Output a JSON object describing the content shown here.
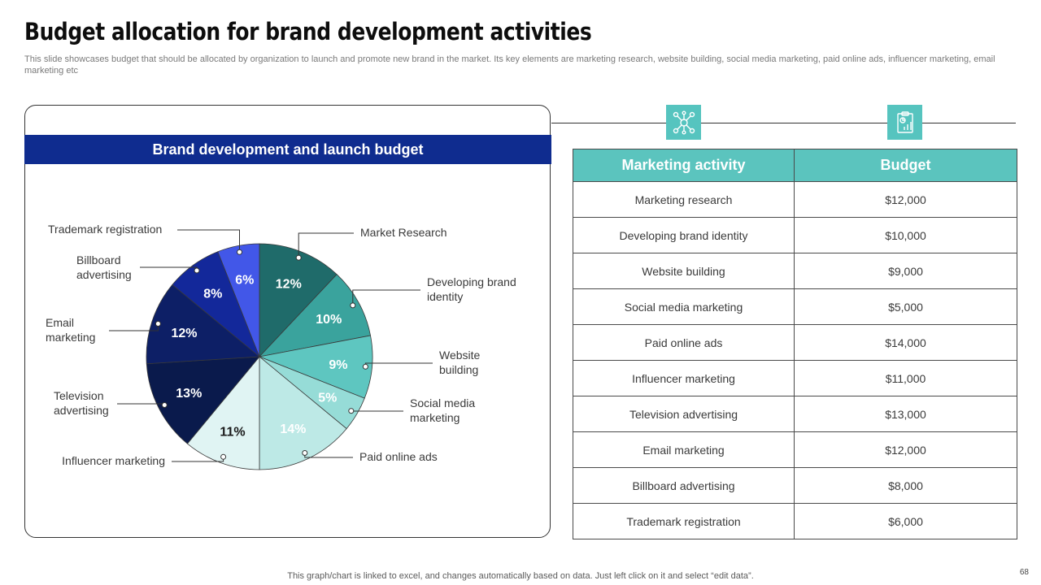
{
  "slide": {
    "title": "Budget allocation for brand development activities",
    "subtitle": "This slide showcases budget that should be allocated by organization to launch and promote new brand in the market. Its key elements are marketing research, website building, social media marketing, paid online ads, influencer marketing, email marketing etc",
    "footer": "This graph/chart is linked to excel,  and changes automatically based on data. Just left click on it and select “edit data”.",
    "page_number": "68"
  },
  "icons": {
    "left": "network-icon",
    "right": "report-chart-icon"
  },
  "chart_data": {
    "type": "pie",
    "title": "Brand development and launch budget",
    "slices": [
      {
        "label": "Market Research",
        "value": 12,
        "percent_label": "12%",
        "color": "#1f6b6a"
      },
      {
        "label": "Developing brand identity",
        "value": 10,
        "percent_label": "10%",
        "color": "#3aa39d"
      },
      {
        "label": "Website building",
        "value": 9,
        "percent_label": "9%",
        "color": "#5ec6c0"
      },
      {
        "label": "Social media marketing",
        "value": 5,
        "percent_label": "5%",
        "color": "#96dcd7"
      },
      {
        "label": "Paid online ads",
        "value": 14,
        "percent_label": "14%",
        "color": "#bde9e6"
      },
      {
        "label": "Influencer marketing",
        "value": 11,
        "percent_label": "11%",
        "color": "#e0f4f3"
      },
      {
        "label": "Television advertising",
        "value": 13,
        "percent_label": "13%",
        "color": "#0a1a4c"
      },
      {
        "label": "Email marketing",
        "value": 12,
        "percent_label": "12%",
        "color": "#0d1f66"
      },
      {
        "label": "Billboard advertising",
        "value": 8,
        "percent_label": "8%",
        "color": "#13289a"
      },
      {
        "label": "Trademark registration",
        "value": 6,
        "percent_label": "6%",
        "color": "#4257e8"
      }
    ]
  },
  "table": {
    "headers": [
      "Marketing activity",
      "Budget"
    ],
    "rows": [
      [
        "Marketing research",
        "$12,000"
      ],
      [
        "Developing brand identity",
        "$10,000"
      ],
      [
        "Website building",
        "$9,000"
      ],
      [
        "Social media marketing",
        "$5,000"
      ],
      [
        "Paid online ads",
        "$14,000"
      ],
      [
        "Influencer marketing",
        "$11,000"
      ],
      [
        "Television advertising",
        "$13,000"
      ],
      [
        "Email marketing",
        "$12,000"
      ],
      [
        "Billboard advertising",
        "$8,000"
      ],
      [
        "Trademark registration",
        "$6,000"
      ]
    ]
  }
}
